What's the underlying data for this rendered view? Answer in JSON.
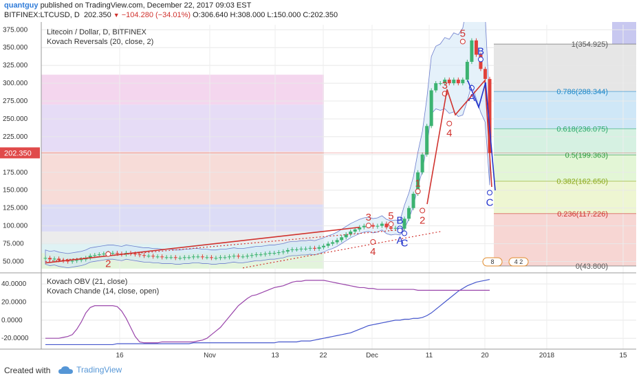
{
  "header": {
    "username": "quantguy",
    "published_text": "published on TradingView.com, December 22, 2017 09:03 EST",
    "symbol": "BITFINEX:LTCUSD, D",
    "last": "202.350",
    "change": "−104.280 (−34.01%)",
    "ohlc": "O:306.640 H:308.000 L:150.000 C:202.350"
  },
  "footer": {
    "created_with": "Created with",
    "brand": "TradingView"
  },
  "colors": {
    "bull": "#3cb371",
    "bear": "#e0413a",
    "wave_red": "#d0312d",
    "wave_blue": "#2233cc",
    "obv": "#4455cc",
    "chande": "#9944aa",
    "price_tag": "#e04a4a"
  },
  "chart_data": [
    {
      "type": "candlestick",
      "title": "Litecoin / Dollar, D, BITFINEX",
      "indicator_label": "Kovach Reversals (20, close, 2)",
      "y_axis_ticks": [
        "375.000",
        "350.000",
        "325.000",
        "300.000",
        "275.000",
        "250.000",
        "225.000",
        "200.000",
        "175.000",
        "150.000",
        "125.000",
        "100.000",
        "75.000",
        "50.000"
      ],
      "ylim": [
        37,
        382
      ],
      "current_price_label": "202.350",
      "x_ticks": [
        "16",
        "Nov",
        "13",
        "22",
        "Dec",
        "11",
        "20",
        "2018",
        "15"
      ],
      "closes": [
        55,
        53,
        54,
        52,
        51,
        50,
        51,
        52,
        53,
        55,
        58,
        59,
        60,
        61,
        62,
        62,
        61,
        60,
        62,
        61,
        60,
        59,
        58,
        58,
        57,
        57,
        56,
        56,
        56,
        55,
        55,
        56,
        56,
        57,
        57,
        56,
        56,
        55,
        55,
        56,
        56,
        57,
        58,
        57,
        57,
        58,
        59,
        60,
        60,
        61,
        62,
        62,
        63,
        64,
        66,
        67,
        67,
        68,
        68,
        69,
        68,
        70,
        72,
        75,
        77,
        80,
        84,
        88,
        92,
        95,
        98,
        100,
        101,
        99,
        100,
        103,
        98,
        96,
        97,
        96,
        110,
        125,
        145,
        175,
        200,
        240,
        290,
        300,
        300,
        305,
        300,
        305,
        300,
        305,
        330,
        360,
        340,
        320,
        306,
        202
      ],
      "fib_levels": [
        {
          "label": "1(354.925)",
          "value": 354.925,
          "color": "#555555"
        },
        {
          "label": "0.786(288.344)",
          "value": 288.344,
          "color": "#1e88c8"
        },
        {
          "label": "0.618(236.075)",
          "value": 236.075,
          "color": "#2aa86a"
        },
        {
          "label": "0.5(199.363)",
          "value": 199.363,
          "color": "#2a9a3a"
        },
        {
          "label": "0.382(162.650)",
          "value": 162.65,
          "color": "#8aa81a"
        },
        {
          "label": "0.236(117.226)",
          "value": 117.226,
          "color": "#d0312d"
        },
        {
          "label": "0(43.800)",
          "value": 43.8,
          "color": "#555555"
        }
      ],
      "wave_labels": [
        {
          "text": "2",
          "x": 14,
          "y": 47,
          "color": "#d0312d"
        },
        {
          "text": "3",
          "x": 72,
          "y": 112,
          "color": "#d0312d"
        },
        {
          "text": "4",
          "x": 73,
          "y": 64,
          "color": "#d0312d"
        },
        {
          "text": "5",
          "x": 77,
          "y": 114,
          "color": "#d0312d"
        },
        {
          "text": "B",
          "x": 79,
          "y": 108,
          "color": "#2233cc"
        },
        {
          "text": "A",
          "x": 79,
          "y": 80,
          "color": "#2233cc"
        },
        {
          "text": "C",
          "x": 80,
          "y": 76,
          "color": "#2233cc"
        },
        {
          "text": "1",
          "x": 83,
          "y": 160,
          "color": "#d0312d"
        },
        {
          "text": "2",
          "x": 84,
          "y": 108,
          "color": "#d0312d"
        },
        {
          "text": "3",
          "x": 89,
          "y": 297,
          "color": "#d0312d"
        },
        {
          "text": "4",
          "x": 90,
          "y": 230,
          "color": "#d0312d"
        },
        {
          "text": "5",
          "x": 93,
          "y": 370,
          "color": "#d0312d"
        },
        {
          "text": "B",
          "x": 97,
          "y": 345,
          "color": "#2233cc"
        },
        {
          "text": "A",
          "x": 95,
          "y": 280,
          "color": "#2233cc"
        },
        {
          "text": "C",
          "x": 99,
          "y": 133,
          "color": "#2233cc"
        }
      ],
      "badges": [
        "8",
        "4 2"
      ]
    },
    {
      "type": "line",
      "indicators": [
        "Kovach OBV (21, close)",
        "Kovach Chande (14, close, open)"
      ],
      "y_axis_ticks": [
        "40.0000",
        "20.0000",
        "0.0000",
        "-20.0000"
      ],
      "ylim": [
        -32,
        50
      ],
      "series": [
        {
          "name": "Kovach OBV (21, close)",
          "values": [
            -27,
            -27,
            -27,
            -27,
            -27,
            -27,
            -27,
            -27,
            -27,
            -27,
            -27,
            -27,
            -27,
            -27,
            -27,
            -27,
            -26,
            -26,
            -26,
            -26,
            -26,
            -26,
            -26,
            -26,
            -26,
            -26,
            -26,
            -26,
            -26,
            -26,
            -26,
            -26,
            -26,
            -25,
            -25,
            -25,
            -25,
            -25,
            -25,
            -25,
            -25,
            -25,
            -25,
            -25,
            -25,
            -25,
            -25,
            -25,
            -25,
            -25,
            -25,
            -25,
            -24,
            -24,
            -24,
            -24,
            -24,
            -23,
            -23,
            -23,
            -22,
            -21,
            -20,
            -19,
            -18,
            -17,
            -16,
            -15,
            -14,
            -12,
            -10,
            -8,
            -6,
            -5,
            -4,
            -3,
            -2,
            -1,
            0,
            0,
            1,
            1,
            2,
            2,
            3,
            5,
            8,
            12,
            16,
            20,
            24,
            28,
            32,
            35,
            38,
            40,
            42,
            43,
            44,
            45
          ]
        },
        {
          "name": "Kovach Chande (14, close, open)",
          "values": [
            -20,
            -20,
            -20,
            -20,
            -19,
            -18,
            -16,
            -10,
            -2,
            8,
            14,
            16,
            16,
            16,
            16,
            16,
            15,
            10,
            2,
            -8,
            -18,
            -24,
            -25,
            -25,
            -25,
            -25,
            -24,
            -24,
            -24,
            -24,
            -24,
            -24,
            -24,
            -24,
            -23,
            -22,
            -20,
            -16,
            -12,
            -8,
            -2,
            4,
            10,
            16,
            20,
            24,
            27,
            28,
            30,
            32,
            34,
            36,
            37,
            38,
            40,
            42,
            43,
            43,
            44,
            44,
            44,
            44,
            44,
            43,
            42,
            41,
            40,
            39,
            38,
            37,
            36,
            36,
            35,
            35,
            34,
            34,
            34,
            34,
            34,
            34,
            34,
            34,
            34,
            33,
            33,
            33,
            33,
            33,
            33,
            33,
            33,
            33,
            33,
            33,
            33,
            33,
            33,
            33,
            33,
            33
          ]
        }
      ]
    }
  ]
}
